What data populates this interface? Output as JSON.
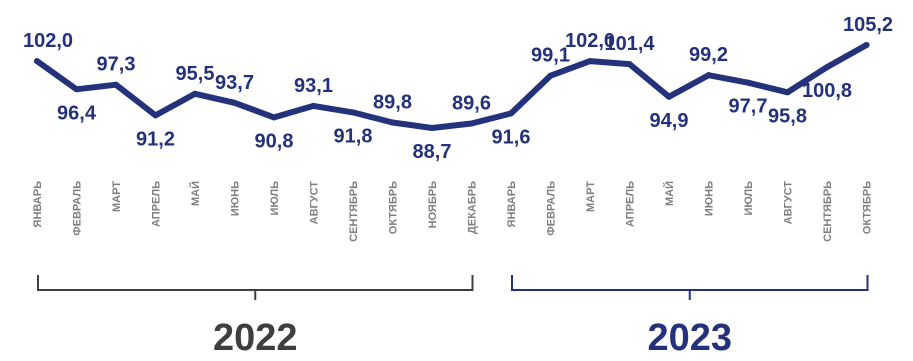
{
  "colors": {
    "line": "#23327a",
    "labels": "#23327a",
    "months": "#7f7f7f",
    "bracket_2022": "#3f3f3f",
    "bracket_2023": "#23327a",
    "year_2022": "#3f3f3f",
    "year_2023": "#23327a"
  },
  "chart_data": {
    "type": "line",
    "categories": [
      "ЯНВАРЬ",
      "ФЕВРАЛЬ",
      "МАРТ",
      "АПРЕЛЬ",
      "МАЙ",
      "ИЮНЬ",
      "ИЮЛЬ",
      "АВГУСТ",
      "СЕНТЯБРЬ",
      "ОКТЯБРЬ",
      "НОЯБРЬ",
      "ДЕКАБРЬ",
      "ЯНВАРЬ",
      "ФЕВРАЛЬ",
      "МАРТ",
      "АПРЕЛЬ",
      "МАЙ",
      "ИЮНЬ",
      "ИЮЛЬ",
      "АВГУСТ",
      "СЕНТЯБРЬ",
      "ОКТЯБРЬ"
    ],
    "values": [
      102.0,
      96.4,
      97.3,
      91.2,
      95.5,
      93.7,
      90.8,
      93.1,
      91.8,
      89.8,
      88.7,
      89.6,
      91.6,
      99.1,
      102.0,
      101.4,
      94.9,
      99.2,
      97.7,
      95.8,
      100.8,
      105.2
    ],
    "value_labels": [
      "102,0",
      "96,4",
      "97,3",
      "91,2",
      "95,5",
      "93,7",
      "90,8",
      "93,1",
      "91,8",
      "89,8",
      "88,7",
      "89,6",
      "91,6",
      "99,1",
      "102,0",
      "101,4",
      "94,9",
      "99,2",
      "97,7",
      "95,8",
      "100,8",
      "105,2"
    ],
    "label_positions": [
      "above",
      "below",
      "above",
      "below",
      "above",
      "above",
      "below",
      "above",
      "below",
      "above",
      "below",
      "above",
      "below",
      "above",
      "above",
      "above",
      "below",
      "above",
      "below",
      "below",
      "below",
      "above"
    ],
    "title": "",
    "xlabel": "",
    "ylabel": "",
    "grid": false,
    "legend": "none",
    "groups": [
      {
        "label": "2022",
        "start_index": 0,
        "end_index": 11
      },
      {
        "label": "2023",
        "start_index": 12,
        "end_index": 21
      }
    ]
  }
}
